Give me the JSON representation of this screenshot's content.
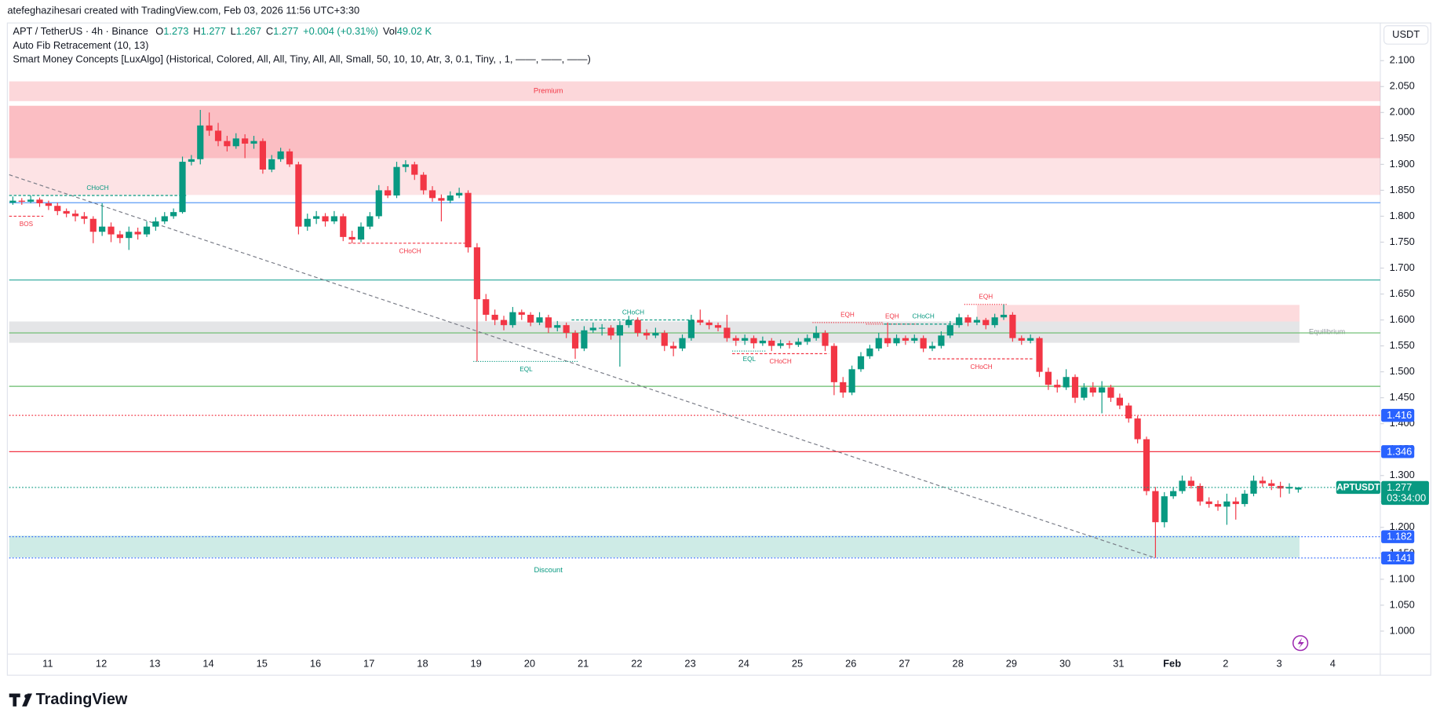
{
  "chart_data": {
    "type": "candlestick",
    "credit": "atefeghazihesari created with TradingView.com, Feb 03, 2026 11:56 UTC+3:30",
    "legend": {
      "title": "APT / TetherUS · 4h · Binance",
      "ohlc_labels": [
        "O",
        "H",
        "L",
        "C"
      ],
      "change": "+0.004 (+0.31%)",
      "volume_label": "Vol",
      "volume": "49.02 K"
    },
    "indicators": [
      "Auto Fib Retracement (10, 13)",
      "Smart Money Concepts [LuxAlgo] (Historical, Colored, All, All, Tiny, All, All, Small, 50, 10, 10, Atr, 3, 0.1, Tiny, , 1, ——, ——, ——)"
    ],
    "currency": "USDT",
    "symbol_tag": "APTUSDT",
    "countdown": "03:34:00",
    "brand": "TradingView",
    "up_color": "#089981",
    "down_color": "#f23645",
    "categories": [
      "11",
      "12",
      "13",
      "14",
      "15",
      "16",
      "17",
      "18",
      "19",
      "20",
      "21",
      "22",
      "23",
      "24",
      "25",
      "26",
      "27",
      "28",
      "29",
      "30",
      "31",
      "Feb",
      "2",
      "3",
      "4"
    ],
    "ylim": [
      0.95,
      2.17
    ],
    "yticks": [
      {
        "value": 1.0,
        "label": "1.000"
      },
      {
        "value": 1.05,
        "label": "1.050"
      },
      {
        "value": 1.1,
        "label": "1.100"
      },
      {
        "value": 1.15,
        "label": "1.150"
      },
      {
        "value": 1.2,
        "label": "1.200"
      },
      {
        "value": 1.25,
        "label": "1.250"
      },
      {
        "value": 1.3,
        "label": "1.300"
      },
      {
        "value": 1.35,
        "label": "1.350"
      },
      {
        "value": 1.4,
        "label": "1.400"
      },
      {
        "value": 1.45,
        "label": "1.450"
      },
      {
        "value": 1.5,
        "label": "1.500"
      },
      {
        "value": 1.55,
        "label": "1.550"
      },
      {
        "value": 1.6,
        "label": "1.600"
      },
      {
        "value": 1.65,
        "label": "1.650"
      },
      {
        "value": 1.7,
        "label": "1.700"
      },
      {
        "value": 1.75,
        "label": "1.750"
      },
      {
        "value": 1.8,
        "label": "1.800"
      },
      {
        "value": 1.85,
        "label": "1.850"
      },
      {
        "value": 1.9,
        "label": "1.900"
      },
      {
        "value": 1.95,
        "label": "1.950"
      },
      {
        "value": 2.0,
        "label": "2.000"
      },
      {
        "value": 2.05,
        "label": "2.050"
      },
      {
        "value": 2.1,
        "label": "2.100"
      }
    ],
    "candles": [
      [
        1.826,
        1.838,
        1.822,
        1.83
      ],
      [
        1.83,
        1.835,
        1.822,
        1.828
      ],
      [
        1.828,
        1.84,
        1.825,
        1.832
      ],
      [
        1.832,
        1.836,
        1.818,
        1.825
      ],
      [
        1.825,
        1.83,
        1.812,
        1.82
      ],
      [
        1.82,
        1.826,
        1.802,
        1.81
      ],
      [
        1.81,
        1.815,
        1.798,
        1.805
      ],
      [
        1.805,
        1.812,
        1.79,
        1.8
      ],
      [
        1.8,
        1.808,
        1.785,
        1.795
      ],
      [
        1.795,
        1.8,
        1.748,
        1.77
      ],
      [
        1.77,
        1.825,
        1.762,
        1.78
      ],
      [
        1.78,
        1.788,
        1.75,
        1.765
      ],
      [
        1.765,
        1.772,
        1.748,
        1.758
      ],
      [
        1.758,
        1.78,
        1.735,
        1.77
      ],
      [
        1.77,
        1.778,
        1.755,
        1.765
      ],
      [
        1.765,
        1.79,
        1.76,
        1.78
      ],
      [
        1.78,
        1.798,
        1.772,
        1.79
      ],
      [
        1.79,
        1.808,
        1.785,
        1.8
      ],
      [
        1.8,
        1.815,
        1.795,
        1.808
      ],
      [
        1.808,
        1.915,
        1.805,
        1.905
      ],
      [
        1.905,
        1.918,
        1.898,
        1.91
      ],
      [
        1.91,
        2.005,
        1.9,
        1.975
      ],
      [
        1.975,
        2.0,
        1.955,
        1.965
      ],
      [
        1.965,
        1.98,
        1.935,
        1.945
      ],
      [
        1.945,
        1.955,
        1.925,
        1.935
      ],
      [
        1.935,
        1.96,
        1.93,
        1.95
      ],
      [
        1.95,
        1.958,
        1.912,
        1.94
      ],
      [
        1.94,
        1.955,
        1.93,
        1.945
      ],
      [
        1.945,
        1.95,
        1.882,
        1.89
      ],
      [
        1.89,
        1.918,
        1.885,
        1.91
      ],
      [
        1.91,
        1.932,
        1.905,
        1.925
      ],
      [
        1.925,
        1.93,
        1.895,
        1.9
      ],
      [
        1.9,
        1.905,
        1.765,
        1.78
      ],
      [
        1.78,
        1.805,
        1.772,
        1.795
      ],
      [
        1.795,
        1.81,
        1.785,
        1.8
      ],
      [
        1.8,
        1.806,
        1.78,
        1.79
      ],
      [
        1.79,
        1.81,
        1.785,
        1.8
      ],
      [
        1.8,
        1.805,
        1.752,
        1.76
      ],
      [
        1.76,
        1.772,
        1.748,
        1.755
      ],
      [
        1.755,
        1.788,
        1.75,
        1.78
      ],
      [
        1.78,
        1.808,
        1.775,
        1.8
      ],
      [
        1.8,
        1.86,
        1.795,
        1.85
      ],
      [
        1.85,
        1.858,
        1.835,
        1.84
      ],
      [
        1.84,
        1.905,
        1.835,
        1.895
      ],
      [
        1.895,
        1.908,
        1.885,
        1.9
      ],
      [
        1.9,
        1.905,
        1.87,
        1.88
      ],
      [
        1.88,
        1.885,
        1.842,
        1.85
      ],
      [
        1.85,
        1.858,
        1.828,
        1.835
      ],
      [
        1.835,
        1.842,
        1.79,
        1.83
      ],
      [
        1.83,
        1.848,
        1.825,
        1.84
      ],
      [
        1.84,
        1.855,
        1.835,
        1.845
      ],
      [
        1.845,
        1.85,
        1.73,
        1.74
      ],
      [
        1.74,
        1.748,
        1.52,
        1.64
      ],
      [
        1.64,
        1.65,
        1.598,
        1.61
      ],
      [
        1.61,
        1.62,
        1.59,
        1.6
      ],
      [
        1.6,
        1.608,
        1.58,
        1.59
      ],
      [
        1.59,
        1.625,
        1.585,
        1.615
      ],
      [
        1.615,
        1.62,
        1.6,
        1.61
      ],
      [
        1.61,
        1.615,
        1.588,
        1.595
      ],
      [
        1.595,
        1.615,
        1.59,
        1.605
      ],
      [
        1.605,
        1.61,
        1.575,
        1.585
      ],
      [
        1.585,
        1.598,
        1.578,
        1.59
      ],
      [
        1.59,
        1.595,
        1.565,
        1.575
      ],
      [
        1.575,
        1.58,
        1.525,
        1.545
      ],
      [
        1.545,
        1.588,
        1.54,
        1.58
      ],
      [
        1.58,
        1.595,
        1.575,
        1.585
      ],
      [
        1.585,
        1.592,
        1.57,
        1.585
      ],
      [
        1.585,
        1.59,
        1.562,
        1.57
      ],
      [
        1.57,
        1.598,
        1.51,
        1.59
      ],
      [
        1.59,
        1.608,
        1.585,
        1.6
      ],
      [
        1.6,
        1.605,
        1.568,
        1.575
      ],
      [
        1.575,
        1.582,
        1.562,
        1.57
      ],
      [
        1.57,
        1.585,
        1.565,
        1.575
      ],
      [
        1.575,
        1.58,
        1.54,
        1.55
      ],
      [
        1.55,
        1.558,
        1.53,
        1.545
      ],
      [
        1.545,
        1.572,
        1.54,
        1.565
      ],
      [
        1.565,
        1.61,
        1.56,
        1.6
      ],
      [
        1.6,
        1.62,
        1.59,
        1.595
      ],
      [
        1.595,
        1.6,
        1.582,
        1.59
      ],
      [
        1.59,
        1.595,
        1.578,
        1.585
      ],
      [
        1.585,
        1.61,
        1.558,
        1.565
      ],
      [
        1.565,
        1.57,
        1.55,
        1.56
      ],
      [
        1.56,
        1.572,
        1.552,
        1.565
      ],
      [
        1.565,
        1.57,
        1.545,
        1.555
      ],
      [
        1.555,
        1.568,
        1.55,
        1.56
      ],
      [
        1.56,
        1.565,
        1.54,
        1.55
      ],
      [
        1.55,
        1.562,
        1.545,
        1.555
      ],
      [
        1.555,
        1.56,
        1.545,
        1.552
      ],
      [
        1.552,
        1.565,
        1.548,
        1.558
      ],
      [
        1.558,
        1.572,
        1.552,
        1.565
      ],
      [
        1.565,
        1.588,
        1.56,
        1.575
      ],
      [
        1.575,
        1.58,
        1.54,
        1.55
      ],
      [
        1.55,
        1.555,
        1.455,
        1.48
      ],
      [
        1.48,
        1.49,
        1.45,
        1.46
      ],
      [
        1.46,
        1.512,
        1.455,
        1.505
      ],
      [
        1.505,
        1.538,
        1.5,
        1.53
      ],
      [
        1.53,
        1.552,
        1.525,
        1.545
      ],
      [
        1.545,
        1.575,
        1.54,
        1.565
      ],
      [
        1.565,
        1.595,
        1.548,
        1.555
      ],
      [
        1.555,
        1.572,
        1.55,
        1.565
      ],
      [
        1.565,
        1.57,
        1.552,
        1.56
      ],
      [
        1.56,
        1.572,
        1.555,
        1.565
      ],
      [
        1.565,
        1.57,
        1.538,
        1.545
      ],
      [
        1.545,
        1.558,
        1.54,
        1.55
      ],
      [
        1.55,
        1.578,
        1.545,
        1.57
      ],
      [
        1.57,
        1.598,
        1.565,
        1.59
      ],
      [
        1.59,
        1.612,
        1.585,
        1.605
      ],
      [
        1.605,
        1.61,
        1.588,
        1.595
      ],
      [
        1.595,
        1.606,
        1.59,
        1.6
      ],
      [
        1.6,
        1.604,
        1.582,
        1.59
      ],
      [
        1.59,
        1.612,
        1.585,
        1.605
      ],
      [
        1.605,
        1.63,
        1.6,
        1.61
      ],
      [
        1.61,
        1.615,
        1.558,
        1.565
      ],
      [
        1.565,
        1.57,
        1.552,
        1.56
      ],
      [
        1.56,
        1.572,
        1.555,
        1.565
      ],
      [
        1.565,
        1.568,
        1.49,
        1.5
      ],
      [
        1.5,
        1.508,
        1.465,
        1.475
      ],
      [
        1.475,
        1.485,
        1.46,
        1.47
      ],
      [
        1.47,
        1.505,
        1.465,
        1.49
      ],
      [
        1.49,
        1.495,
        1.44,
        1.45
      ],
      [
        1.45,
        1.478,
        1.445,
        1.47
      ],
      [
        1.47,
        1.48,
        1.452,
        1.46
      ],
      [
        1.46,
        1.482,
        1.42,
        1.47
      ],
      [
        1.47,
        1.475,
        1.442,
        1.45
      ],
      [
        1.45,
        1.458,
        1.428,
        1.435
      ],
      [
        1.435,
        1.44,
        1.402,
        1.41
      ],
      [
        1.41,
        1.415,
        1.362,
        1.37
      ],
      [
        1.37,
        1.375,
        1.262,
        1.27
      ],
      [
        1.27,
        1.278,
        1.141,
        1.21
      ],
      [
        1.21,
        1.268,
        1.2,
        1.26
      ],
      [
        1.26,
        1.278,
        1.255,
        1.27
      ],
      [
        1.27,
        1.3,
        1.265,
        1.29
      ],
      [
        1.29,
        1.298,
        1.275,
        1.28
      ],
      [
        1.28,
        1.285,
        1.242,
        1.25
      ],
      [
        1.25,
        1.258,
        1.238,
        1.245
      ],
      [
        1.245,
        1.252,
        1.232,
        1.24
      ],
      [
        1.24,
        1.265,
        1.205,
        1.25
      ],
      [
        1.25,
        1.258,
        1.215,
        1.245
      ],
      [
        1.245,
        1.272,
        1.24,
        1.265
      ],
      [
        1.265,
        1.3,
        1.26,
        1.29
      ],
      [
        1.29,
        1.298,
        1.278,
        1.285
      ],
      [
        1.285,
        1.292,
        1.272,
        1.28
      ],
      [
        1.28,
        1.288,
        1.258,
        1.275
      ],
      [
        1.275,
        1.285,
        1.265,
        1.278
      ],
      [
        1.273,
        1.277,
        1.267,
        1.277
      ]
    ],
    "zones": [
      {
        "top": 2.06,
        "bottom": 2.022,
        "color": "rgba(242,54,69,0.2)",
        "extend": true,
        "label": "Premium",
        "label_color": "#f23645"
      },
      {
        "top": 2.013,
        "bottom": 1.912,
        "color": "rgba(242,54,69,0.32)",
        "extend": true
      },
      {
        "top": 1.912,
        "bottom": 1.841,
        "color": "rgba(242,54,69,0.14)",
        "extend": true
      },
      {
        "top": 1.629,
        "bottom": 1.597,
        "color": "rgba(242,54,69,0.18)",
        "from": 108
      },
      {
        "top": 1.597,
        "bottom": 1.556,
        "color": "rgba(120,123,134,0.2)",
        "label": "Equilibrium",
        "label_color": "#9598a1"
      },
      {
        "top": 1.184,
        "bottom": 1.142,
        "color": "rgba(8,153,129,0.2)",
        "label": "Discount",
        "label_color": "#089981"
      }
    ],
    "lines": [
      {
        "value": 1.826,
        "color": "#5b9cf6"
      },
      {
        "value": 1.677,
        "color": "#26a69a"
      },
      {
        "value": 1.575,
        "color": "#66bb6a"
      },
      {
        "value": 1.472,
        "color": "#66bb6a"
      }
    ],
    "levels": [
      {
        "value": 1.416,
        "color": "#f23645",
        "style": "dotted"
      },
      {
        "value": 1.346,
        "color": "#f23645",
        "style": "solid"
      },
      {
        "value": 1.182,
        "color": "#2962ff",
        "style": "dotted"
      },
      {
        "value": 1.141,
        "color": "#2962ff",
        "style": "dotted"
      }
    ],
    "level_label_color": "#2962ff",
    "trendline": {
      "from": [
        0,
        1.88
      ],
      "to": [
        128,
        1.141
      ],
      "color": "#787b86"
    },
    "structures": [
      {
        "text": "CHoCH",
        "value": 1.84,
        "from": 0,
        "to": 19,
        "color": "#089981"
      },
      {
        "text": "BOS",
        "value": 1.8,
        "from": 0,
        "to": 3,
        "color": "#f23645"
      },
      {
        "text": "CHoCH",
        "value": 1.748,
        "from": 38,
        "to": 51,
        "color": "#f23645"
      },
      {
        "text": "EQL",
        "value": 1.52,
        "from": 52,
        "to": 63,
        "color": "#089981"
      },
      {
        "text": "CHoCH",
        "value": 1.6,
        "from": 63,
        "to": 76,
        "color": "#089981"
      },
      {
        "text": "EQL",
        "value": 1.54,
        "from": 81,
        "to": 84,
        "color": "#089981"
      },
      {
        "text": "CHoCH",
        "value": 1.535,
        "from": 81,
        "to": 91,
        "color": "#f23645"
      },
      {
        "text": "EQH",
        "value": 1.595,
        "from": 90,
        "to": 97,
        "color": "#f23645"
      },
      {
        "text": "EQH",
        "value": 1.592,
        "from": 96,
        "to": 101,
        "color": "#f23645"
      },
      {
        "text": "CHoCH",
        "value": 1.592,
        "from": 98,
        "to": 106,
        "color": "#089981"
      },
      {
        "text": "CHoCH",
        "value": 1.525,
        "from": 103,
        "to": 114,
        "color": "#f23645"
      },
      {
        "text": "EQH",
        "value": 1.63,
        "from": 107,
        "to": 111,
        "color": "#f23645"
      }
    ]
  }
}
